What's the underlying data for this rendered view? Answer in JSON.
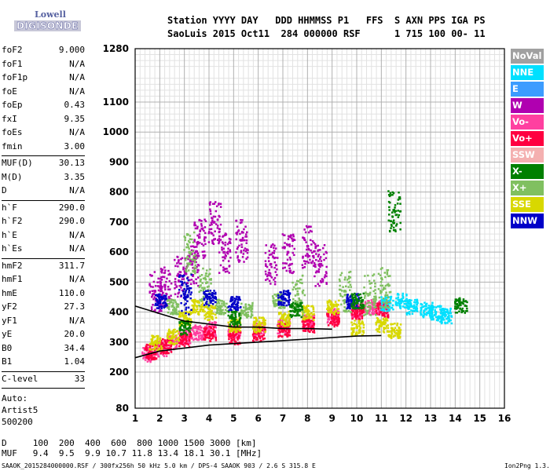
{
  "logo": {
    "line1": "Lowell",
    "line2": "DIGISONDE"
  },
  "header": {
    "line1": "Station YYYY DAY   DDD HHMMSS P1   FFS  S AXN PPS IGA PS",
    "line2": "SaoLuis 2015 Oct11  284 000000 RSF      1 715 100 00- 11"
  },
  "params": [
    {
      "name": "foF2",
      "value": "9.000"
    },
    {
      "name": "foF1",
      "value": "N/A"
    },
    {
      "name": "foF1p",
      "value": "N/A"
    },
    {
      "name": "foE",
      "value": "N/A"
    },
    {
      "name": "foEp",
      "value": "0.43"
    },
    {
      "name": "fxI",
      "value": "9.35"
    },
    {
      "name": "foEs",
      "value": "N/A"
    },
    {
      "name": "fmin",
      "value": "3.00"
    },
    {
      "name": "MUF(D)",
      "value": "30.13"
    },
    {
      "name": "M(D)",
      "value": "3.35"
    },
    {
      "name": "D",
      "value": "N/A"
    },
    {
      "name": "h`F",
      "value": "290.0"
    },
    {
      "name": "h`F2",
      "value": "290.0"
    },
    {
      "name": "h`E",
      "value": "N/A"
    },
    {
      "name": "h`Es",
      "value": "N/A"
    },
    {
      "name": "hmF2",
      "value": "311.7"
    },
    {
      "name": "hmF1",
      "value": "N/A"
    },
    {
      "name": "hmE",
      "value": "110.0"
    },
    {
      "name": "yF2",
      "value": "27.3"
    },
    {
      "name": "yF1",
      "value": "N/A"
    },
    {
      "name": "yE",
      "value": "20.0"
    },
    {
      "name": "B0",
      "value": "34.4"
    },
    {
      "name": "B1",
      "value": "1.04"
    },
    {
      "name": "C-level",
      "value": "33"
    }
  ],
  "auto": {
    "line1": "Auto:",
    "line2": "Artist5",
    "line3": "500200"
  },
  "legend": [
    {
      "label": "NoVal",
      "color": "#a0a0a0"
    },
    {
      "label": "NNE",
      "color": "#00e0ff"
    },
    {
      "label": "E",
      "color": "#3c9cff"
    },
    {
      "label": "W",
      "color": "#b000b0"
    },
    {
      "label": "Vo-",
      "color": "#ff40a0"
    },
    {
      "label": "Vo+",
      "color": "#ff0040"
    },
    {
      "label": "SSW",
      "color": "#f4b0b0"
    },
    {
      "label": "X-",
      "color": "#008000"
    },
    {
      "label": "X+",
      "color": "#80c060"
    },
    {
      "label": "SSE",
      "color": "#d8d800"
    },
    {
      "label": "NNW",
      "color": "#0000c8"
    }
  ],
  "muf_table": {
    "d_line": "D     100  200  400  600  800 1000 1500 3000 [km]",
    "muf_line": "MUF   9.4  9.5  9.9 10.7 11.8 13.4 18.1 30.1 [MHz]"
  },
  "footer": {
    "left": "SAAOK_2015284000000.RSF / 300fx256h 50 kHz 5.0 km / DPS-4 SAAOK 903 / 2.6 S 315.8 E",
    "right": "Ion2Png 1.3.17"
  },
  "chart_data": {
    "type": "scatter",
    "title": "",
    "xlabel": "",
    "ylabel": "",
    "x_ticks": [
      1,
      2,
      3,
      4,
      5,
      6,
      7,
      8,
      9,
      10,
      11,
      12,
      13,
      14,
      15,
      16
    ],
    "y_ticks": [
      80,
      200,
      300,
      400,
      500,
      600,
      700,
      800,
      900,
      1000,
      1100,
      1280
    ],
    "xlim": [
      1,
      16
    ],
    "ylim": [
      80,
      1280
    ],
    "grid": true,
    "series": [
      {
        "name": "Vo-",
        "color": "#ff40a0",
        "points": [
          [
            1.5,
            262
          ],
          [
            2.0,
            280
          ],
          [
            2.5,
            300
          ],
          [
            3.0,
            320
          ],
          [
            3.5,
            335
          ],
          [
            4.0,
            345
          ],
          [
            5.0,
            340
          ],
          [
            6.0,
            345
          ],
          [
            7.0,
            355
          ],
          [
            8.0,
            370
          ],
          [
            9.0,
            390
          ],
          [
            10.0,
            410
          ],
          [
            10.5,
            420
          ],
          [
            11.0,
            420
          ]
        ]
      },
      {
        "name": "Vo+",
        "color": "#ff0040",
        "points": [
          [
            1.6,
            270
          ],
          [
            2.2,
            290
          ],
          [
            3.0,
            310
          ],
          [
            4.0,
            330
          ],
          [
            5.0,
            320
          ],
          [
            6.0,
            330
          ],
          [
            7.0,
            345
          ],
          [
            8.0,
            360
          ],
          [
            9.0,
            380
          ],
          [
            10.0,
            400
          ],
          [
            11.0,
            410
          ]
        ]
      },
      {
        "name": "SSE",
        "color": "#d8d800",
        "points": [
          [
            1.8,
            300
          ],
          [
            2.5,
            320
          ],
          [
            3.0,
            380
          ],
          [
            3.5,
            420
          ],
          [
            4.0,
            400
          ],
          [
            5.0,
            360
          ],
          [
            6.0,
            360
          ],
          [
            7.0,
            380
          ],
          [
            8.0,
            400
          ],
          [
            9.0,
            420
          ],
          [
            10.0,
            350
          ],
          [
            11.0,
            360
          ],
          [
            11.5,
            340
          ]
        ]
      },
      {
        "name": "W",
        "color": "#b000b0",
        "points": [
          [
            1.8,
            470
          ],
          [
            2.2,
            490
          ],
          [
            2.8,
            520
          ],
          [
            3.3,
            560
          ],
          [
            3.6,
            650
          ],
          [
            4.2,
            700
          ],
          [
            4.6,
            600
          ],
          [
            5.3,
            640
          ],
          [
            6.5,
            560
          ],
          [
            7.2,
            600
          ],
          [
            8.0,
            620
          ],
          [
            8.5,
            560
          ]
        ]
      },
      {
        "name": "NNE",
        "color": "#00e0ff",
        "points": [
          [
            11.2,
            430
          ],
          [
            11.8,
            440
          ],
          [
            12.2,
            420
          ],
          [
            12.8,
            410
          ],
          [
            13.2,
            400
          ],
          [
            13.6,
            390
          ]
        ]
      },
      {
        "name": "X+",
        "color": "#80c060",
        "points": [
          [
            2.5,
            420
          ],
          [
            3.2,
            600
          ],
          [
            3.8,
            480
          ],
          [
            4.5,
            420
          ],
          [
            5.5,
            410
          ],
          [
            6.8,
            440
          ],
          [
            7.6,
            460
          ],
          [
            9.5,
            470
          ],
          [
            10.5,
            460
          ],
          [
            11.1,
            480
          ]
        ]
      },
      {
        "name": "NNW",
        "color": "#0000c8",
        "points": [
          [
            2.0,
            440
          ],
          [
            3.0,
            460
          ],
          [
            4.0,
            450
          ],
          [
            5.0,
            430
          ],
          [
            7.0,
            450
          ],
          [
            9.8,
            440
          ]
        ]
      },
      {
        "name": "X-",
        "color": "#008000",
        "points": [
          [
            3.0,
            350
          ],
          [
            5.0,
            380
          ],
          [
            7.5,
            410
          ],
          [
            10.0,
            440
          ],
          [
            11.5,
            740
          ],
          [
            14.2,
            425
          ]
        ]
      }
    ],
    "trace_lines": [
      {
        "points": [
          [
            1.0,
            248
          ],
          [
            2.0,
            270
          ],
          [
            4.0,
            290
          ],
          [
            6.0,
            300
          ],
          [
            8.0,
            310
          ],
          [
            10.0,
            320
          ],
          [
            11.0,
            322
          ]
        ]
      },
      {
        "points": [
          [
            1.0,
            420
          ],
          [
            2.0,
            395
          ],
          [
            3.0,
            370
          ],
          [
            4.0,
            360
          ],
          [
            5.0,
            350
          ],
          [
            6.0,
            350
          ],
          [
            7.0,
            345
          ],
          [
            8.0,
            345
          ],
          [
            9.0,
            343
          ]
        ]
      }
    ]
  }
}
